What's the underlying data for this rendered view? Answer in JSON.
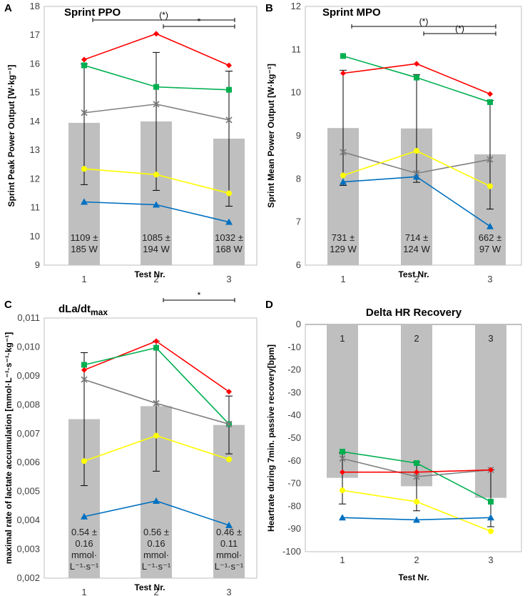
{
  "chart_data": [
    {
      "type": "bar+line",
      "panel": "A",
      "title": "Sprint PPO",
      "ylabel": "Sprint Peak Power Output  [W·kg⁻¹]",
      "xlabel": "Test Nr.",
      "categories": [
        "1",
        "2",
        "3"
      ],
      "ylim": [
        9,
        18
      ],
      "yticks": [
        "9",
        "10",
        "11",
        "12",
        "13",
        "14",
        "15",
        "16",
        "17",
        "18"
      ],
      "bars": [
        13.95,
        14.0,
        13.4
      ],
      "bar_labels": [
        [
          "1109 ±",
          "185 W"
        ],
        [
          "1085 ±",
          "194 W"
        ],
        [
          "1032 ±",
          "168 W"
        ]
      ],
      "errors": [
        [
          11.8,
          16.0
        ],
        [
          11.6,
          16.4
        ],
        [
          11.05,
          15.75
        ]
      ],
      "series": [
        {
          "name": "red",
          "color": "#ff0000",
          "marker": "diamond",
          "values": [
            16.15,
            17.05,
            15.95
          ]
        },
        {
          "name": "green",
          "color": "#00b050",
          "marker": "square",
          "values": [
            15.95,
            15.2,
            15.1
          ]
        },
        {
          "name": "gray",
          "color": "#7f7f7f",
          "marker": "x",
          "values": [
            14.3,
            14.6,
            14.05
          ]
        },
        {
          "name": "yellow",
          "color": "#ffff00",
          "marker": "circle",
          "values": [
            12.35,
            12.15,
            11.5
          ]
        },
        {
          "name": "blue",
          "color": "#0070c0",
          "marker": "triangle",
          "values": [
            11.2,
            11.1,
            10.5
          ]
        }
      ],
      "significance": [
        {
          "from": 0,
          "to": 2,
          "label": "(*)"
        },
        {
          "from": 1,
          "to": 2,
          "label": "*"
        }
      ]
    },
    {
      "type": "bar+line",
      "panel": "B",
      "title": "Sprint MPO",
      "ylabel": "Sprint Mean Power Output [W·kg⁻¹]",
      "xlabel": "Test Nr.",
      "categories": [
        "1",
        "2",
        "3"
      ],
      "ylim": [
        6,
        12
      ],
      "yticks": [
        "6",
        "7",
        "8",
        "9",
        "10",
        "11",
        "12"
      ],
      "bars": [
        9.18,
        9.17,
        8.57
      ],
      "bar_labels": [
        [
          "731 ±",
          "129 W"
        ],
        [
          "714 ±",
          "124 W"
        ],
        [
          "662 ±",
          "97 W"
        ]
      ],
      "errors": [
        [
          7.85,
          10.52
        ],
        [
          7.92,
          10.42
        ],
        [
          7.3,
          9.82
        ]
      ],
      "series": [
        {
          "name": "green",
          "color": "#00b050",
          "marker": "square",
          "values": [
            10.85,
            10.35,
            9.78
          ]
        },
        {
          "name": "red",
          "color": "#ff0000",
          "marker": "diamond",
          "values": [
            10.45,
            10.67,
            9.97
          ]
        },
        {
          "name": "gray",
          "color": "#7f7f7f",
          "marker": "x",
          "values": [
            8.62,
            8.13,
            8.45
          ]
        },
        {
          "name": "yellow",
          "color": "#ffff00",
          "marker": "circle",
          "values": [
            8.08,
            8.65,
            7.83
          ]
        },
        {
          "name": "blue",
          "color": "#0070c0",
          "marker": "triangle",
          "values": [
            7.93,
            8.05,
            6.9
          ]
        }
      ],
      "significance": [
        {
          "from": 0,
          "to": 2,
          "label": "(*)"
        },
        {
          "from": 1,
          "to": 2,
          "label": "(*)"
        }
      ]
    },
    {
      "type": "bar+line",
      "panel": "C",
      "title": "dLa/dtmax",
      "title_main": "dLa/dt",
      "title_sub": "max",
      "ylabel": "maximal rate of lactate accumulation [mmol·L⁻¹·s⁻¹·kg⁻¹]",
      "xlabel": "Test Nr.",
      "categories": [
        "1",
        "2",
        "3"
      ],
      "ylim": [
        0.002,
        0.011
      ],
      "yticks": [
        "0,002",
        "0,003",
        "0,004",
        "0,005",
        "0,006",
        "0,007",
        "0,008",
        "0,009",
        "0,010",
        "0,011"
      ],
      "bars": [
        0.0075,
        0.00795,
        0.0073
      ],
      "bar_labels": [
        [
          "0.54 ±",
          "0.16",
          "mmol·",
          "L⁻¹·s⁻¹"
        ],
        [
          "0.56 ±",
          "0.16",
          "mmol·",
          "L⁻¹·s⁻¹"
        ],
        [
          "0.46 ±",
          "0.11",
          "mmol·",
          "L⁻¹·s⁻¹"
        ]
      ],
      "errors": [
        [
          0.0052,
          0.0098
        ],
        [
          0.0057,
          0.0102
        ],
        [
          0.0063,
          0.0083
        ]
      ],
      "series": [
        {
          "name": "red",
          "color": "#ff0000",
          "marker": "diamond",
          "values": [
            0.0092,
            0.0102,
            0.00845
          ]
        },
        {
          "name": "green",
          "color": "#00b050",
          "marker": "square",
          "values": [
            0.00938,
            0.00997,
            0.00733
          ]
        },
        {
          "name": "gray",
          "color": "#7f7f7f",
          "marker": "x",
          "values": [
            0.00887,
            0.00805,
            0.00733
          ]
        },
        {
          "name": "yellow",
          "color": "#ffff00",
          "marker": "circle",
          "values": [
            0.00605,
            0.00693,
            0.00611
          ]
        },
        {
          "name": "blue",
          "color": "#0070c0",
          "marker": "triangle",
          "values": [
            0.00413,
            0.00467,
            0.00383
          ]
        }
      ],
      "significance": [
        {
          "from": 1,
          "to": 2,
          "label": "*"
        }
      ]
    },
    {
      "type": "bar+line",
      "panel": "D",
      "title": "Delta HR Recovery",
      "ylabel": "Heartrate during 7min. passive recovery[bpm]",
      "xlabel": "Test Nr.",
      "categories": [
        "1",
        "2",
        "3"
      ],
      "ylim": [
        -100,
        0
      ],
      "yticks": [
        "-100",
        "-90",
        "-80",
        "-70",
        "-60",
        "-50",
        "-40",
        "-30",
        "-20",
        "-10",
        "0"
      ],
      "bars": [
        -67.5,
        -71.2,
        -76.3
      ],
      "bar_labels": [
        [
          "1"
        ],
        [
          "2"
        ],
        [
          "3"
        ]
      ],
      "errors": [
        [
          -79,
          -56.5
        ],
        [
          -82,
          -60.5
        ],
        [
          -89,
          -64
        ]
      ],
      "series": [
        {
          "name": "green",
          "color": "#00b050",
          "marker": "square",
          "values": [
            -56,
            -61,
            -78
          ]
        },
        {
          "name": "gray",
          "color": "#7f7f7f",
          "marker": "x",
          "values": [
            -59,
            -67,
            -64
          ]
        },
        {
          "name": "red",
          "color": "#ff0000",
          "marker": "diamond",
          "values": [
            -65,
            -65,
            -64
          ]
        },
        {
          "name": "yellow",
          "color": "#ffff00",
          "marker": "circle",
          "values": [
            -73,
            -78,
            -91
          ]
        },
        {
          "name": "blue",
          "color": "#0070c0",
          "marker": "triangle",
          "values": [
            -85,
            -86,
            -85
          ]
        }
      ],
      "significance": []
    }
  ]
}
